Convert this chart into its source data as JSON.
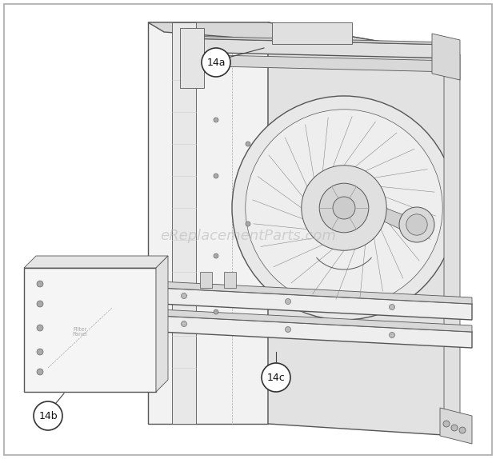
{
  "background_color": "#ffffff",
  "line_color": "#555555",
  "light_line": "#888888",
  "dash_color": "#aaaaaa",
  "panel_face": "#f2f2f2",
  "panel_right": "#e2e2e2",
  "panel_top": "#d8d8d8",
  "rail_face": "#eeeeee",
  "rail_side": "#d8d8d8",
  "fan_face": "#e8e8e8",
  "label_14a": "14a",
  "label_14b": "14b",
  "label_14c": "14c",
  "watermark": "eReplacementParts.com",
  "watermark_color": "#bbbbbb",
  "watermark_fontsize": 13,
  "fig_width": 6.2,
  "fig_height": 5.74
}
